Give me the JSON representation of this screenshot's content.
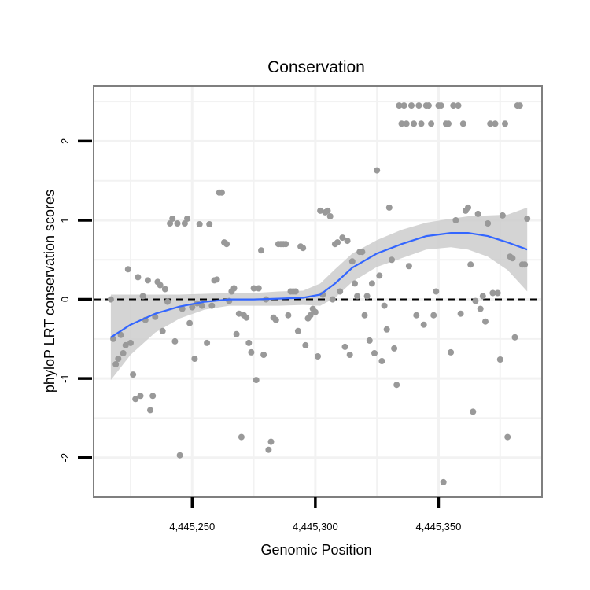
{
  "chart_data": {
    "type": "scatter",
    "title": "Conservation",
    "xlabel": "Genomic Position",
    "ylabel": "phyloP LRT conservation scores",
    "xlim": [
      4445210,
      4445392
    ],
    "ylim": [
      -2.5,
      2.7
    ],
    "grid": true,
    "x_ticks": [
      {
        "value": 4445250,
        "label": "4,445,250"
      },
      {
        "value": 4445300,
        "label": "4,445,300"
      },
      {
        "value": 4445350,
        "label": "4,445,350"
      }
    ],
    "y_ticks": [
      {
        "value": -2,
        "label": "-2"
      },
      {
        "value": -1,
        "label": "-1"
      },
      {
        "value": 0,
        "label": "0"
      },
      {
        "value": 1,
        "label": "1"
      },
      {
        "value": 2,
        "label": "2"
      }
    ],
    "reference_line": {
      "y": 0,
      "style": "dashed",
      "color": "#000000"
    },
    "colors": {
      "points": "#999999",
      "smooth": "#3366ff",
      "band": "#cccccc",
      "frame": "#7f7f7f",
      "grid": "#f2f2f2"
    },
    "points": [
      [
        4445217,
        0.0
      ],
      [
        4445218,
        -0.5
      ],
      [
        4445219,
        -0.82
      ],
      [
        4445220,
        -0.75
      ],
      [
        4445221,
        -0.45
      ],
      [
        4445222,
        -0.68
      ],
      [
        4445223,
        -0.58
      ],
      [
        4445224,
        0.38
      ],
      [
        4445225,
        -0.55
      ],
      [
        4445226,
        -0.95
      ],
      [
        4445227,
        -1.26
      ],
      [
        4445228,
        0.28
      ],
      [
        4445229,
        -1.22
      ],
      [
        4445230,
        0.04
      ],
      [
        4445231,
        -0.26
      ],
      [
        4445232,
        0.24
      ],
      [
        4445233,
        -1.4
      ],
      [
        4445234,
        -1.22
      ],
      [
        4445235,
        -0.22
      ],
      [
        4445236,
        0.22
      ],
      [
        4445237,
        0.18
      ],
      [
        4445238,
        -0.4
      ],
      [
        4445239,
        0.13
      ],
      [
        4445240,
        -0.03
      ],
      [
        4445241,
        0.96
      ],
      [
        4445242,
        1.02
      ],
      [
        4445243,
        -0.53
      ],
      [
        4445244,
        0.96
      ],
      [
        4445245,
        -1.97
      ],
      [
        4445246,
        -0.12
      ],
      [
        4445247,
        0.96
      ],
      [
        4445248,
        1.02
      ],
      [
        4445249,
        -0.3
      ],
      [
        4445250,
        -0.1
      ],
      [
        4445251,
        -0.75
      ],
      [
        4445252,
        -0.05
      ],
      [
        4445253,
        0.95
      ],
      [
        4445254,
        -0.08
      ],
      [
        4445256,
        -0.55
      ],
      [
        4445257,
        0.95
      ],
      [
        4445258,
        -0.08
      ],
      [
        4445259,
        0.24
      ],
      [
        4445260,
        0.25
      ],
      [
        4445261,
        1.35
      ],
      [
        4445262,
        1.35
      ],
      [
        4445263,
        0.72
      ],
      [
        4445264,
        0.7
      ],
      [
        4445265,
        -0.02
      ],
      [
        4445266,
        0.1
      ],
      [
        4445267,
        0.14
      ],
      [
        4445268,
        -0.44
      ],
      [
        4445269,
        -0.18
      ],
      [
        4445270,
        -1.74
      ],
      [
        4445271,
        -0.2
      ],
      [
        4445272,
        -0.23
      ],
      [
        4445273,
        -0.55
      ],
      [
        4445274,
        -0.67
      ],
      [
        4445275,
        0.14
      ],
      [
        4445276,
        -1.02
      ],
      [
        4445277,
        0.14
      ],
      [
        4445278,
        0.62
      ],
      [
        4445279,
        -0.7
      ],
      [
        4445280,
        0.0
      ],
      [
        4445281,
        -1.9
      ],
      [
        4445282,
        -1.8
      ],
      [
        4445283,
        -0.23
      ],
      [
        4445284,
        -0.26
      ],
      [
        4445285,
        0.7
      ],
      [
        4445286,
        0.7
      ],
      [
        4445287,
        0.7
      ],
      [
        4445288,
        0.7
      ],
      [
        4445289,
        -0.2
      ],
      [
        4445290,
        0.1
      ],
      [
        4445291,
        0.1
      ],
      [
        4445292,
        0.1
      ],
      [
        4445293,
        -0.4
      ],
      [
        4445294,
        0.67
      ],
      [
        4445295,
        0.65
      ],
      [
        4445296,
        -0.58
      ],
      [
        4445297,
        -0.24
      ],
      [
        4445298,
        -0.2
      ],
      [
        4445299,
        -0.12
      ],
      [
        4445300,
        -0.16
      ],
      [
        4445301,
        -0.72
      ],
      [
        4445302,
        1.12
      ],
      [
        4445303,
        0.06
      ],
      [
        4445304,
        1.1
      ],
      [
        4445305,
        1.12
      ],
      [
        4445306,
        1.05
      ],
      [
        4445307,
        0.0
      ],
      [
        4445308,
        0.7
      ],
      [
        4445309,
        0.72
      ],
      [
        4445310,
        0.1
      ],
      [
        4445311,
        0.78
      ],
      [
        4445312,
        -0.6
      ],
      [
        4445313,
        0.74
      ],
      [
        4445314,
        -0.7
      ],
      [
        4445315,
        0.48
      ],
      [
        4445316,
        0.2
      ],
      [
        4445317,
        0.04
      ],
      [
        4445318,
        0.6
      ],
      [
        4445319,
        0.6
      ],
      [
        4445320,
        -0.2
      ],
      [
        4445321,
        0.04
      ],
      [
        4445322,
        -0.52
      ],
      [
        4445323,
        0.2
      ],
      [
        4445324,
        -0.68
      ],
      [
        4445325,
        1.63
      ],
      [
        4445326,
        0.3
      ],
      [
        4445327,
        -0.78
      ],
      [
        4445328,
        -0.08
      ],
      [
        4445329,
        -0.38
      ],
      [
        4445330,
        1.16
      ],
      [
        4445331,
        0.5
      ],
      [
        4445332,
        -0.62
      ],
      [
        4445333,
        -1.08
      ],
      [
        4445334,
        2.45
      ],
      [
        4445335,
        2.22
      ],
      [
        4445336,
        2.45
      ],
      [
        4445337,
        2.22
      ],
      [
        4445338,
        0.42
      ],
      [
        4445339,
        2.45
      ],
      [
        4445340,
        2.22
      ],
      [
        4445341,
        -0.2
      ],
      [
        4445342,
        2.45
      ],
      [
        4445343,
        2.22
      ],
      [
        4445344,
        -0.32
      ],
      [
        4445345,
        2.45
      ],
      [
        4445346,
        2.45
      ],
      [
        4445347,
        2.22
      ],
      [
        4445348,
        -0.2
      ],
      [
        4445349,
        0.1
      ],
      [
        4445350,
        2.45
      ],
      [
        4445351,
        2.45
      ],
      [
        4445352,
        -2.31
      ],
      [
        4445353,
        2.22
      ],
      [
        4445354,
        2.22
      ],
      [
        4445355,
        -0.67
      ],
      [
        4445356,
        2.45
      ],
      [
        4445357,
        1.0
      ],
      [
        4445358,
        2.45
      ],
      [
        4445359,
        -0.18
      ],
      [
        4445360,
        2.22
      ],
      [
        4445361,
        1.12
      ],
      [
        4445362,
        1.16
      ],
      [
        4445363,
        0.44
      ],
      [
        4445364,
        -1.42
      ],
      [
        4445365,
        -0.02
      ],
      [
        4445366,
        1.08
      ],
      [
        4445367,
        -0.12
      ],
      [
        4445368,
        0.04
      ],
      [
        4445369,
        -0.28
      ],
      [
        4445370,
        0.96
      ],
      [
        4445371,
        2.22
      ],
      [
        4445372,
        0.08
      ],
      [
        4445373,
        2.22
      ],
      [
        4445374,
        0.08
      ],
      [
        4445375,
        -0.76
      ],
      [
        4445376,
        1.06
      ],
      [
        4445377,
        2.22
      ],
      [
        4445378,
        -1.74
      ],
      [
        4445379,
        0.54
      ],
      [
        4445380,
        0.52
      ],
      [
        4445381,
        -0.48
      ],
      [
        4445382,
        2.45
      ],
      [
        4445383,
        2.45
      ],
      [
        4445384,
        0.44
      ],
      [
        4445385,
        0.44
      ],
      [
        4445386,
        1.02
      ]
    ],
    "smooth": {
      "x": [
        4445217,
        4445225,
        4445235,
        4445245,
        4445255,
        4445265,
        4445275,
        4445285,
        4445295,
        4445302,
        4445308,
        4445315,
        4445325,
        4445335,
        4445345,
        4445355,
        4445362,
        4445370,
        4445378,
        4445386
      ],
      "y": [
        -0.48,
        -0.32,
        -0.18,
        -0.09,
        -0.03,
        0.0,
        0.0,
        0.01,
        0.02,
        0.06,
        0.2,
        0.4,
        0.58,
        0.7,
        0.8,
        0.84,
        0.84,
        0.8,
        0.72,
        0.63
      ],
      "lower": [
        -1.02,
        -0.7,
        -0.42,
        -0.24,
        -0.13,
        -0.08,
        -0.08,
        -0.08,
        -0.07,
        -0.08,
        0.02,
        0.22,
        0.41,
        0.52,
        0.63,
        0.66,
        0.63,
        0.54,
        0.37,
        0.1
      ],
      "upper": [
        0.06,
        0.06,
        0.06,
        0.06,
        0.07,
        0.08,
        0.08,
        0.1,
        0.11,
        0.2,
        0.38,
        0.58,
        0.75,
        0.88,
        0.97,
        1.02,
        1.05,
        1.06,
        1.07,
        1.16
      ]
    }
  }
}
